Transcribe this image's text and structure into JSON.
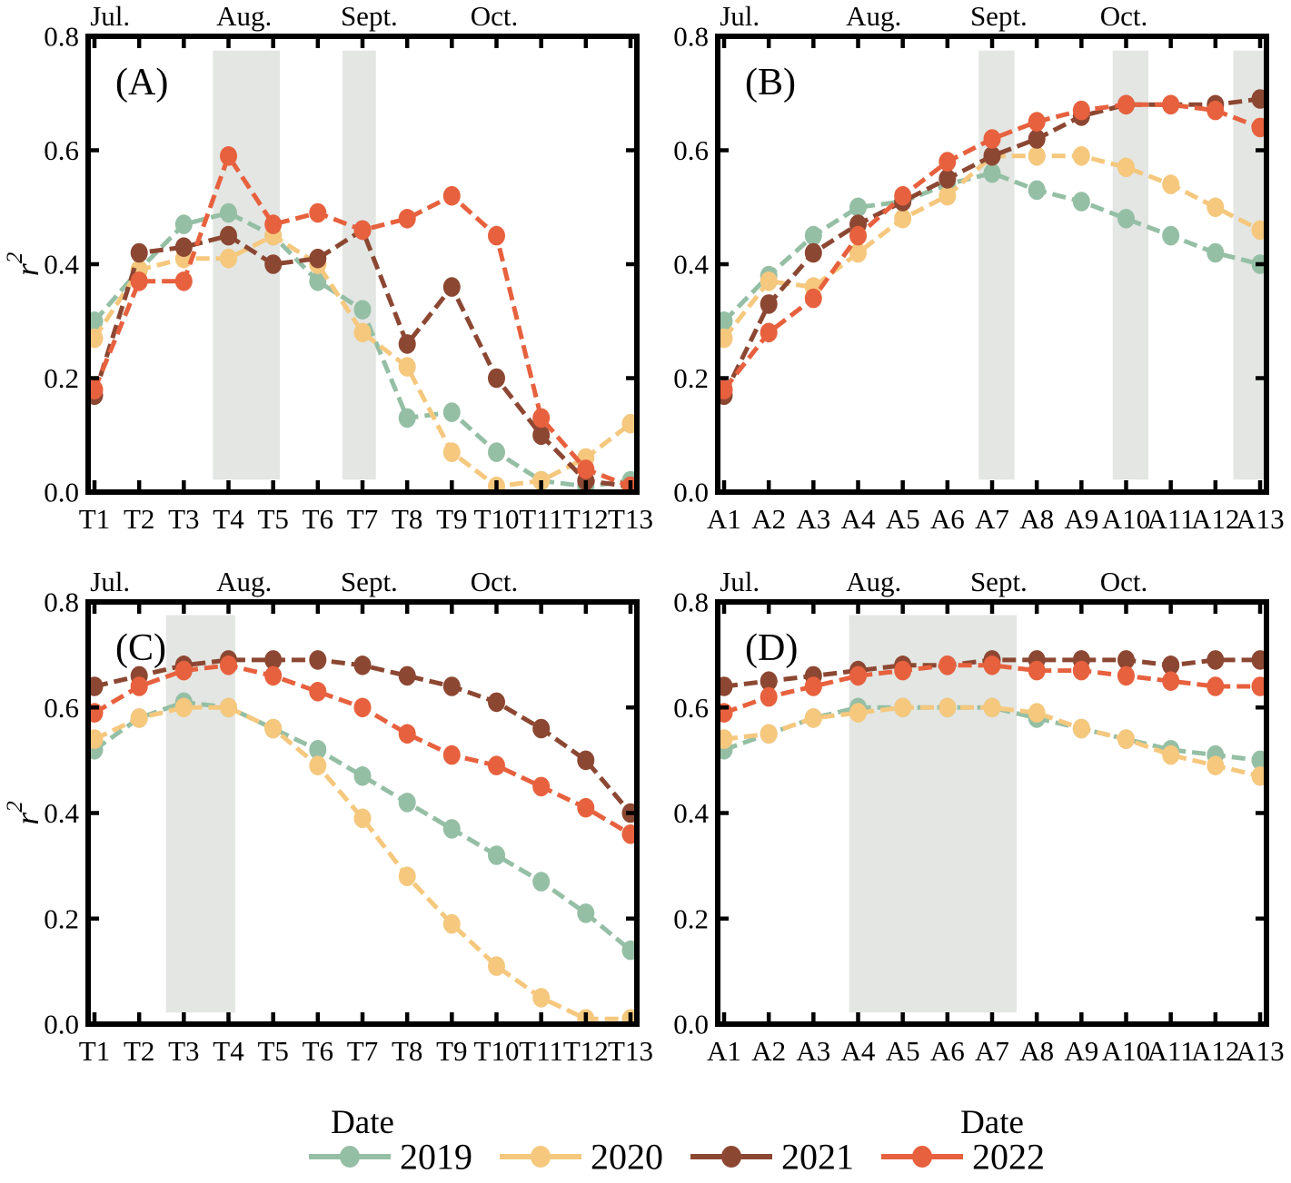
{
  "figure": {
    "ylabel": {
      "base": "r",
      "sup": "2"
    },
    "xlabel": "Date",
    "months": [
      "Jul.",
      "Aug.",
      "Sept.",
      "Oct."
    ],
    "month_positions": [
      0.35,
      3.35,
      6.15,
      8.95
    ],
    "yticks": [
      0.0,
      0.2,
      0.4,
      0.6,
      0.8
    ],
    "ylim": [
      0.0,
      0.8
    ],
    "band_color": "#E3E6E3",
    "band_y_range": [
      0.022,
      0.775
    ],
    "colors": {
      "2019": "#95BFA5",
      "2020": "#F5C87E",
      "2021": "#8C4732",
      "2022": "#E7613E"
    }
  },
  "legend": {
    "entries": [
      "2019",
      "2020",
      "2021",
      "2022"
    ]
  },
  "chart_data": [
    {
      "id": "A",
      "panel_label": "(A)",
      "type": "line",
      "categories": [
        "T1",
        "T2",
        "T3",
        "T4",
        "T5",
        "T6",
        "T7",
        "T8",
        "T9",
        "T10",
        "T11",
        "T12",
        "T13"
      ],
      "highlight_bands": [
        [
          2.65,
          4.15
        ],
        [
          5.55,
          6.3
        ]
      ],
      "ylim": [
        0.0,
        0.8
      ],
      "series": [
        {
          "name": "2019",
          "values": [
            0.3,
            0.39,
            0.47,
            0.49,
            0.45,
            0.37,
            0.32,
            0.13,
            0.14,
            0.07,
            0.02,
            0.01,
            0.02
          ]
        },
        {
          "name": "2020",
          "values": [
            0.27,
            0.39,
            0.41,
            0.41,
            0.45,
            0.4,
            0.28,
            0.22,
            0.07,
            0.01,
            0.02,
            0.06,
            0.12
          ]
        },
        {
          "name": "2021",
          "values": [
            0.17,
            0.42,
            0.43,
            0.45,
            0.4,
            0.41,
            0.46,
            0.26,
            0.36,
            0.2,
            0.1,
            0.02,
            0.01
          ]
        },
        {
          "name": "2022",
          "values": [
            0.18,
            0.37,
            0.37,
            0.59,
            0.47,
            0.49,
            0.46,
            0.48,
            0.52,
            0.45,
            0.13,
            0.04,
            0.01
          ]
        }
      ]
    },
    {
      "id": "B",
      "panel_label": "(B)",
      "type": "line",
      "categories": [
        "A1",
        "A2",
        "A3",
        "A4",
        "A5",
        "A6",
        "A7",
        "A8",
        "A9",
        "A10",
        "A11",
        "A12",
        "A13"
      ],
      "highlight_bands": [
        [
          5.7,
          6.5
        ],
        [
          8.7,
          9.5
        ],
        [
          11.4,
          12.15
        ]
      ],
      "ylim": [
        0.0,
        0.8
      ],
      "series": [
        {
          "name": "2019",
          "values": [
            0.3,
            0.38,
            0.45,
            0.5,
            0.51,
            0.54,
            0.56,
            0.53,
            0.51,
            0.48,
            0.45,
            0.42,
            0.4
          ]
        },
        {
          "name": "2020",
          "values": [
            0.27,
            0.37,
            0.36,
            0.42,
            0.48,
            0.52,
            0.59,
            0.59,
            0.59,
            0.57,
            0.54,
            0.5,
            0.46
          ]
        },
        {
          "name": "2021",
          "values": [
            0.17,
            0.33,
            0.42,
            0.47,
            0.51,
            0.55,
            0.59,
            0.62,
            0.66,
            0.68,
            0.68,
            0.68,
            0.69
          ]
        },
        {
          "name": "2022",
          "values": [
            0.18,
            0.28,
            0.34,
            0.45,
            0.52,
            0.58,
            0.62,
            0.65,
            0.67,
            0.68,
            0.68,
            0.67,
            0.64
          ]
        }
      ]
    },
    {
      "id": "C",
      "panel_label": "(C)",
      "type": "line",
      "categories": [
        "T1",
        "T2",
        "T3",
        "T4",
        "T5",
        "T6",
        "T7",
        "T8",
        "T9",
        "T10",
        "T11",
        "T12",
        "T13"
      ],
      "highlight_bands": [
        [
          1.6,
          3.15
        ]
      ],
      "ylim": [
        0.0,
        0.8
      ],
      "series": [
        {
          "name": "2019",
          "values": [
            0.52,
            0.58,
            0.61,
            0.6,
            0.56,
            0.52,
            0.47,
            0.42,
            0.37,
            0.32,
            0.27,
            0.21,
            0.14
          ]
        },
        {
          "name": "2020",
          "values": [
            0.54,
            0.58,
            0.6,
            0.6,
            0.56,
            0.49,
            0.39,
            0.28,
            0.19,
            0.11,
            0.05,
            0.01,
            0.01
          ]
        },
        {
          "name": "2021",
          "values": [
            0.64,
            0.66,
            0.68,
            0.69,
            0.69,
            0.69,
            0.68,
            0.66,
            0.64,
            0.61,
            0.56,
            0.5,
            0.4
          ]
        },
        {
          "name": "2022",
          "values": [
            0.59,
            0.64,
            0.67,
            0.68,
            0.66,
            0.63,
            0.6,
            0.55,
            0.51,
            0.49,
            0.45,
            0.41,
            0.36
          ]
        }
      ]
    },
    {
      "id": "D",
      "panel_label": "(D)",
      "type": "line",
      "categories": [
        "A1",
        "A2",
        "A3",
        "A4",
        "A5",
        "A6",
        "A7",
        "A8",
        "A9",
        "A10",
        "A11",
        "A12",
        "A13"
      ],
      "highlight_bands": [
        [
          2.8,
          6.55
        ]
      ],
      "ylim": [
        0.0,
        0.8
      ],
      "series": [
        {
          "name": "2019",
          "values": [
            0.52,
            0.55,
            0.58,
            0.6,
            0.6,
            0.6,
            0.6,
            0.58,
            0.56,
            0.54,
            0.52,
            0.51,
            0.5
          ]
        },
        {
          "name": "2020",
          "values": [
            0.54,
            0.55,
            0.58,
            0.59,
            0.6,
            0.6,
            0.6,
            0.59,
            0.56,
            0.54,
            0.51,
            0.49,
            0.47
          ]
        },
        {
          "name": "2021",
          "values": [
            0.64,
            0.65,
            0.66,
            0.67,
            0.68,
            0.68,
            0.69,
            0.69,
            0.69,
            0.69,
            0.68,
            0.69,
            0.69
          ]
        },
        {
          "name": "2022",
          "values": [
            0.59,
            0.62,
            0.64,
            0.66,
            0.67,
            0.68,
            0.68,
            0.67,
            0.67,
            0.66,
            0.65,
            0.64,
            0.64
          ]
        }
      ]
    }
  ]
}
